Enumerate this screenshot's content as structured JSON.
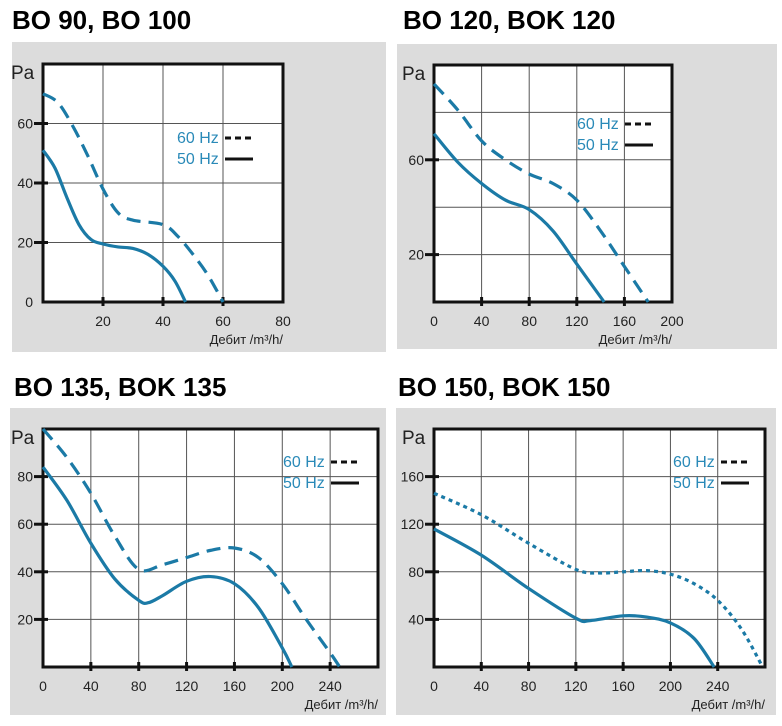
{
  "chart_data": [
    {
      "type": "line",
      "title": "BO 90, BO 100",
      "ylabel": "Pa",
      "xlabel": "Дебит /m³/h/",
      "xlim": [
        0,
        80
      ],
      "ylim": [
        0,
        80
      ],
      "x_grid": [
        20,
        40,
        60
      ],
      "y_grid": [
        20,
        40,
        60
      ],
      "x_ticks": [
        20,
        40,
        60,
        80
      ],
      "y_ticks": [
        0,
        20,
        40,
        60
      ],
      "grid": true,
      "legend_placement": "right",
      "series": [
        {
          "name": "60 Hz",
          "style": "dashed",
          "x": [
            0,
            5,
            10,
            15,
            20,
            25,
            30,
            40,
            45,
            50,
            55,
            60
          ],
          "y": [
            70,
            67,
            59,
            49,
            38,
            30,
            27.5,
            26,
            22,
            16,
            9,
            0
          ]
        },
        {
          "name": "50 Hz",
          "style": "solid",
          "x": [
            0,
            4,
            8,
            12,
            16,
            20,
            25,
            30,
            35,
            40,
            44,
            47.5
          ],
          "y": [
            51,
            45,
            35,
            26,
            21,
            19.5,
            18.5,
            18,
            16,
            12,
            7,
            0
          ]
        }
      ]
    },
    {
      "type": "line",
      "title": "BO 120, BOK 120",
      "ylabel": "Pa",
      "xlabel": "Дебит /m³/h/",
      "xlim": [
        0,
        200
      ],
      "ylim": [
        0,
        100
      ],
      "x_grid": [
        40,
        80,
        120,
        160
      ],
      "y_grid": [
        20,
        40,
        60,
        80
      ],
      "x_ticks": [
        0,
        40,
        80,
        120,
        160,
        200
      ],
      "y_ticks": [
        20,
        60
      ],
      "grid": true,
      "legend_placement": "right",
      "series": [
        {
          "name": "60 Hz",
          "style": "dashed",
          "x": [
            0,
            20,
            40,
            60,
            80,
            100,
            120,
            140,
            160,
            180
          ],
          "y": [
            92,
            81,
            68,
            60,
            54,
            50,
            43,
            30,
            15,
            0
          ]
        },
        {
          "name": "50 Hz",
          "style": "solid",
          "x": [
            0,
            20,
            40,
            60,
            80,
            100,
            120,
            143
          ],
          "y": [
            71,
            59,
            50,
            43,
            39,
            30,
            16,
            0
          ]
        }
      ]
    },
    {
      "type": "line",
      "title": "BO 135, BOK 135",
      "ylabel": "Pa",
      "xlabel": "Дебит /m³/h/",
      "xlim": [
        0,
        280
      ],
      "ylim": [
        0,
        100
      ],
      "x_grid": [
        40,
        80,
        120,
        160,
        200,
        240
      ],
      "y_grid": [
        20,
        40,
        60,
        80
      ],
      "x_ticks": [
        0,
        40,
        80,
        120,
        160,
        200,
        240
      ],
      "y_ticks": [
        20,
        40,
        60,
        80
      ],
      "grid": true,
      "legend_placement": "top-right",
      "series": [
        {
          "name": "60 Hz",
          "style": "dashed",
          "x": [
            0,
            20,
            40,
            60,
            80,
            100,
            120,
            140,
            160,
            180,
            200,
            220,
            240,
            248
          ],
          "y": [
            100,
            88,
            73,
            55,
            41,
            43,
            46,
            49,
            50,
            46,
            35,
            20,
            6,
            0
          ]
        },
        {
          "name": "50 Hz",
          "style": "solid",
          "x": [
            0,
            20,
            40,
            60,
            80,
            88,
            100,
            120,
            140,
            160,
            180,
            200,
            208
          ],
          "y": [
            84,
            70,
            52,
            37,
            28,
            27,
            30,
            36,
            38,
            35,
            25,
            8,
            0
          ]
        }
      ]
    },
    {
      "type": "line",
      "title": "BO 150, BOK 150",
      "ylabel": "Pa",
      "xlabel": "Дебит /m³/h/",
      "xlim": [
        0,
        280
      ],
      "ylim": [
        0,
        200
      ],
      "x_grid": [
        40,
        80,
        120,
        160,
        200,
        240
      ],
      "y_grid": [
        40,
        80,
        120,
        160
      ],
      "x_ticks": [
        0,
        40,
        80,
        120,
        160,
        200,
        240
      ],
      "y_ticks": [
        40,
        80,
        120,
        160
      ],
      "grid": true,
      "legend_placement": "top-right",
      "series": [
        {
          "name": "60 Hz",
          "style": "dotted",
          "x": [
            0,
            40,
            80,
            120,
            140,
            160,
            180,
            200,
            220,
            240,
            260,
            278
          ],
          "y": [
            146,
            128,
            104,
            82,
            79,
            80,
            81,
            78,
            70,
            56,
            32,
            0
          ]
        },
        {
          "name": "50 Hz",
          "style": "solid",
          "x": [
            0,
            40,
            80,
            120,
            132,
            160,
            180,
            200,
            220,
            237
          ],
          "y": [
            116,
            94,
            66,
            41,
            39,
            43,
            42,
            37,
            24,
            0
          ]
        }
      ]
    }
  ],
  "colors": {
    "curve": "#1b7aa6",
    "legend_text": "#2a8ab8",
    "panel": "#dcdcdc",
    "frame": "#111111",
    "grid": "#555555"
  }
}
